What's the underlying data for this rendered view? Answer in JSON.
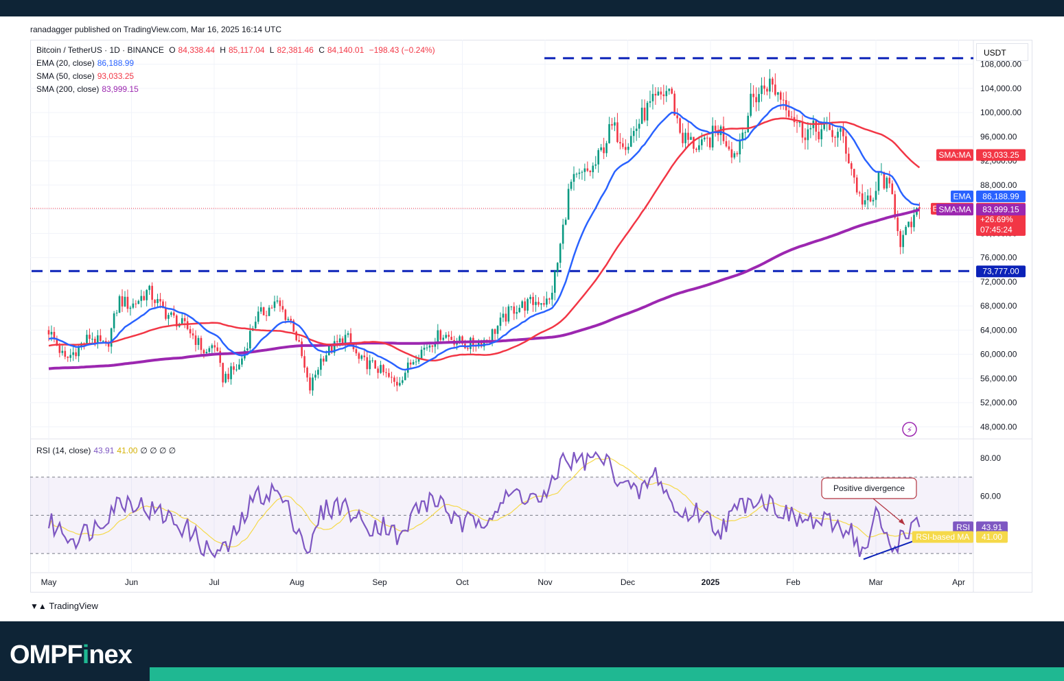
{
  "header": {
    "published": "ranadagger published on TradingView.com, Mar 16, 2025 16:14 UTC"
  },
  "legend": {
    "symbol": "Bitcoin / TetherUS · 1D · BINANCE",
    "ohlc": [
      {
        "k": "O",
        "v": "84,338.44"
      },
      {
        "k": "H",
        "v": "85,117.04"
      },
      {
        "k": "L",
        "v": "82,381.46"
      },
      {
        "k": "C",
        "v": "84,140.01"
      }
    ],
    "change": "−198.43 (−0.24%)",
    "indicators": [
      {
        "label": "EMA (20, close)",
        "value": "86,188.99",
        "color": "#2962ff"
      },
      {
        "label": "SMA (50, close)",
        "value": "93,033.25",
        "color": "#f23645"
      },
      {
        "label": "SMA (200, close)",
        "value": "83,999.15",
        "color": "#9c27b0"
      }
    ],
    "rsi_label": "RSI (14, close)",
    "rsi_value": "43.91",
    "rsi_ma_value": "41.00",
    "rsi_extra": "∅ ∅ ∅ ∅"
  },
  "currency": "USDT",
  "colors": {
    "up": "#089981",
    "down": "#f23645",
    "ema": "#2962ff",
    "sma50": "#f23645",
    "sma200": "#9c27b0",
    "rsi": "#7e57c2",
    "rsi_ma": "#f5d94a",
    "level": "#0b22b8",
    "brand_bg": "#0e2436",
    "brand_accent": "#1fb892"
  },
  "price_tags": [
    {
      "label": "SMA:MA",
      "value": "93,033.25",
      "color": "#f23645",
      "price": 93033.25
    },
    {
      "label": "EMA",
      "value": "86,188.99",
      "color": "#2962ff",
      "price": 86188.99
    },
    {
      "label": "BTCUSDT",
      "value": "84,140.01",
      "extra1": "+26.69%",
      "extra2": "07:45:24",
      "color": "#f23645",
      "price": 84140.01
    },
    {
      "label": "SMA:MA",
      "value": "83,999.15",
      "color": "#9c27b0",
      "price": 83999.15
    },
    {
      "label": "",
      "value": "73,777.00",
      "color": "#0b22b8",
      "price": 73777
    }
  ],
  "rsi_tags": [
    {
      "label": "RSI",
      "value": "43.91",
      "color": "#7e57c2",
      "text_color": "#ffffff"
    },
    {
      "label": "RSI-based MA",
      "value": "41.00",
      "color": "#f5d94a",
      "text_color": "#131722"
    }
  ],
  "annotation": "Positive divergence",
  "chart_data": {
    "type": "candlestick",
    "symbol": "BTCUSDT",
    "timeframe": "1D",
    "x_ticks": [
      "May",
      "Jun",
      "Jul",
      "Aug",
      "Sep",
      "Oct",
      "Nov",
      "Dec",
      "2025",
      "Feb",
      "Mar",
      "Apr"
    ],
    "y_ticks": [
      "48,000.00",
      "52,000.00",
      "56,000.00",
      "60,000.00",
      "64,000.00",
      "68,000.00",
      "72,000.00",
      "76,000.00",
      "80,000.00",
      "84,000.00",
      "88,000.00",
      "92,000.00",
      "96,000.00",
      "100,000.00",
      "104,000.00",
      "108,000.00"
    ],
    "ylim": [
      46000,
      110000
    ],
    "key_prices": [
      {
        "month": 0.0,
        "price": 64000
      },
      {
        "month": 0.2,
        "price": 59000
      },
      {
        "month": 0.5,
        "price": 63000
      },
      {
        "month": 0.7,
        "price": 61000
      },
      {
        "month": 0.85,
        "price": 69000
      },
      {
        "month": 1.0,
        "price": 68000
      },
      {
        "month": 1.2,
        "price": 70500
      },
      {
        "month": 1.4,
        "price": 67000
      },
      {
        "month": 1.7,
        "price": 64000
      },
      {
        "month": 1.9,
        "price": 60000
      },
      {
        "month": 2.0,
        "price": 62000
      },
      {
        "month": 2.1,
        "price": 56000
      },
      {
        "month": 2.3,
        "price": 58000
      },
      {
        "month": 2.5,
        "price": 66000
      },
      {
        "month": 2.75,
        "price": 68500
      },
      {
        "month": 2.95,
        "price": 65000
      },
      {
        "month": 3.05,
        "price": 60000
      },
      {
        "month": 3.15,
        "price": 54000
      },
      {
        "month": 3.3,
        "price": 59500
      },
      {
        "month": 3.6,
        "price": 63000
      },
      {
        "month": 3.75,
        "price": 59000
      },
      {
        "month": 3.95,
        "price": 58000
      },
      {
        "month": 4.2,
        "price": 55000
      },
      {
        "month": 4.45,
        "price": 60000
      },
      {
        "month": 4.75,
        "price": 63500
      },
      {
        "month": 4.9,
        "price": 62500
      },
      {
        "month": 5.05,
        "price": 61500
      },
      {
        "month": 5.3,
        "price": 62500
      },
      {
        "month": 5.6,
        "price": 67500
      },
      {
        "month": 5.95,
        "price": 69000
      },
      {
        "month": 6.05,
        "price": 68500
      },
      {
        "month": 6.15,
        "price": 75000
      },
      {
        "month": 6.3,
        "price": 88000
      },
      {
        "month": 6.6,
        "price": 91000
      },
      {
        "month": 6.8,
        "price": 97500
      },
      {
        "month": 7.0,
        "price": 95000
      },
      {
        "month": 7.2,
        "price": 100000
      },
      {
        "month": 7.5,
        "price": 104000
      },
      {
        "month": 7.65,
        "price": 96000
      },
      {
        "month": 7.9,
        "price": 94000
      },
      {
        "month": 8.1,
        "price": 97500
      },
      {
        "month": 8.3,
        "price": 93000
      },
      {
        "month": 8.5,
        "price": 102000
      },
      {
        "month": 8.7,
        "price": 105000
      },
      {
        "month": 8.9,
        "price": 102000
      },
      {
        "month": 9.1,
        "price": 97000
      },
      {
        "month": 9.4,
        "price": 97000
      },
      {
        "month": 9.6,
        "price": 96000
      },
      {
        "month": 9.8,
        "price": 86000
      },
      {
        "month": 9.95,
        "price": 84500
      },
      {
        "month": 10.05,
        "price": 90000
      },
      {
        "month": 10.2,
        "price": 86000
      },
      {
        "month": 10.3,
        "price": 78500
      },
      {
        "month": 10.45,
        "price": 82000
      },
      {
        "month": 10.55,
        "price": 84140
      }
    ],
    "levels": [
      {
        "price": 109000,
        "style": "dashed",
        "from_month": 6.2
      },
      {
        "price": 73777,
        "style": "dashed",
        "from_month": 0.0
      }
    ],
    "rsi": {
      "ylim": [
        20,
        90
      ],
      "y_ticks": [
        "60.00",
        "80.00"
      ],
      "bands": [
        30,
        50,
        70
      ],
      "values": [
        [
          0.0,
          46
        ],
        [
          0.3,
          38
        ],
        [
          0.6,
          45
        ],
        [
          0.8,
          56
        ],
        [
          1.0,
          58
        ],
        [
          1.2,
          53
        ],
        [
          1.4,
          50
        ],
        [
          1.7,
          42
        ],
        [
          1.95,
          30
        ],
        [
          2.15,
          32
        ],
        [
          2.5,
          60
        ],
        [
          2.75,
          63
        ],
        [
          3.0,
          45
        ],
        [
          3.15,
          30
        ],
        [
          3.3,
          52
        ],
        [
          3.55,
          56
        ],
        [
          3.8,
          45
        ],
        [
          4.1,
          45
        ],
        [
          4.25,
          36
        ],
        [
          4.45,
          55
        ],
        [
          4.75,
          58
        ],
        [
          4.95,
          44
        ],
        [
          5.3,
          50
        ],
        [
          5.65,
          62
        ],
        [
          5.95,
          58
        ],
        [
          6.05,
          60
        ],
        [
          6.2,
          80
        ],
        [
          6.4,
          78
        ],
        [
          6.7,
          80
        ],
        [
          6.85,
          72
        ],
        [
          7.1,
          60
        ],
        [
          7.35,
          72
        ],
        [
          7.6,
          50
        ],
        [
          7.9,
          52
        ],
        [
          8.1,
          42
        ],
        [
          8.3,
          52
        ],
        [
          8.5,
          60
        ],
        [
          8.75,
          56
        ],
        [
          9.0,
          48
        ],
        [
          9.2,
          47
        ],
        [
          9.5,
          45
        ],
        [
          9.7,
          43
        ],
        [
          9.85,
          28
        ],
        [
          10.0,
          50
        ],
        [
          10.2,
          32
        ],
        [
          10.35,
          42
        ],
        [
          10.55,
          43.91
        ]
      ],
      "divergence_line": [
        [
          9.85,
          27
        ],
        [
          10.55,
          38
        ]
      ]
    }
  }
}
